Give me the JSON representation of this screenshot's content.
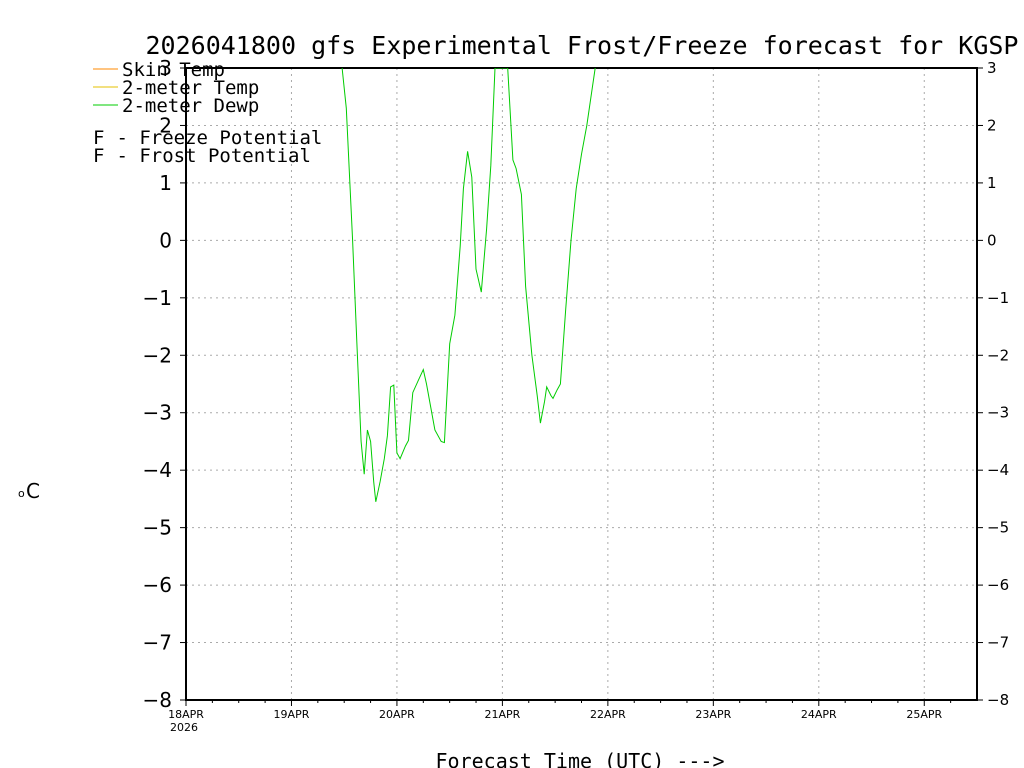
{
  "chart_data": {
    "type": "line",
    "title": "2026041800 gfs Experimental Frost/Freeze forecast for KGSP",
    "xlabel": "Forecast Time (UTC) --->",
    "ylabel": "°C",
    "ylabel_base": "C",
    "ylabel_sup": "o",
    "ylim": [
      -8,
      3
    ],
    "y_ticks": [
      3,
      2,
      1,
      0,
      -1,
      -2,
      -3,
      -4,
      -5,
      -6,
      -7,
      -8
    ],
    "y_tick_labels": [
      "3",
      "2",
      "1",
      "0",
      "−1",
      "−2",
      "−3",
      "−4",
      "−5",
      "−6",
      "−7",
      "−8"
    ],
    "xlim_days": [
      0,
      7.5
    ],
    "x_ticks": [
      {
        "day": 0,
        "label": "18APR",
        "sub": "2026"
      },
      {
        "day": 1,
        "label": "19APR",
        "sub": ""
      },
      {
        "day": 2,
        "label": "20APR",
        "sub": ""
      },
      {
        "day": 3,
        "label": "21APR",
        "sub": ""
      },
      {
        "day": 4,
        "label": "22APR",
        "sub": ""
      },
      {
        "day": 5,
        "label": "23APR",
        "sub": ""
      },
      {
        "day": 6,
        "label": "24APR",
        "sub": ""
      },
      {
        "day": 7,
        "label": "25APR",
        "sub": ""
      }
    ],
    "grid": true,
    "legend": [
      {
        "label": "Skin Temp",
        "color": "#ff8800"
      },
      {
        "label": "2-meter Temp",
        "color": "#e6c200"
      },
      {
        "label": "2-meter Dewp",
        "color": "#00cc00"
      }
    ],
    "annotations": [
      {
        "symbol": "F",
        "text": " - Freeze Potential",
        "color": "#cc00cc"
      },
      {
        "symbol": "F",
        "text": " - Frost Potential",
        "color": "#3333ff"
      }
    ],
    "series": [
      {
        "name": "2-meter Dewp",
        "color": "#00cc00",
        "x": [
          1.48,
          1.52,
          1.58,
          1.62,
          1.66,
          1.69,
          1.72,
          1.75,
          1.78,
          1.8,
          1.84,
          1.88,
          1.91,
          1.94,
          1.97,
          2.0,
          2.03,
          2.08,
          2.11,
          2.15,
          2.2,
          2.25,
          2.28,
          2.32,
          2.36,
          2.42,
          2.45,
          2.5,
          2.55,
          2.6,
          2.63,
          2.67,
          2.71,
          2.75,
          2.8,
          2.85,
          2.89,
          2.93,
          2.97,
          3.05,
          3.1,
          3.13,
          3.18,
          3.22,
          3.28,
          3.33,
          3.36,
          3.4,
          3.42,
          3.46,
          3.48,
          3.52,
          3.55,
          3.6,
          3.65,
          3.7,
          3.75,
          3.8,
          3.84,
          3.88
        ],
        "y": [
          3.0,
          2.3,
          0.0,
          -1.8,
          -3.5,
          -4.07,
          -3.3,
          -3.5,
          -4.2,
          -4.55,
          -4.2,
          -3.8,
          -3.4,
          -2.55,
          -2.52,
          -3.7,
          -3.8,
          -3.58,
          -3.48,
          -2.65,
          -2.45,
          -2.25,
          -2.5,
          -2.9,
          -3.3,
          -3.5,
          -3.52,
          -1.8,
          -1.3,
          -0.1,
          0.9,
          1.55,
          1.1,
          -0.5,
          -0.9,
          0.2,
          1.3,
          3.0,
          3.0,
          3.0,
          1.4,
          1.25,
          0.8,
          -0.8,
          -2.0,
          -2.7,
          -3.18,
          -2.8,
          -2.55,
          -2.7,
          -2.75,
          -2.6,
          -2.5,
          -1.2,
          0.0,
          0.9,
          1.5,
          2.0,
          2.5,
          3.0
        ]
      }
    ]
  }
}
